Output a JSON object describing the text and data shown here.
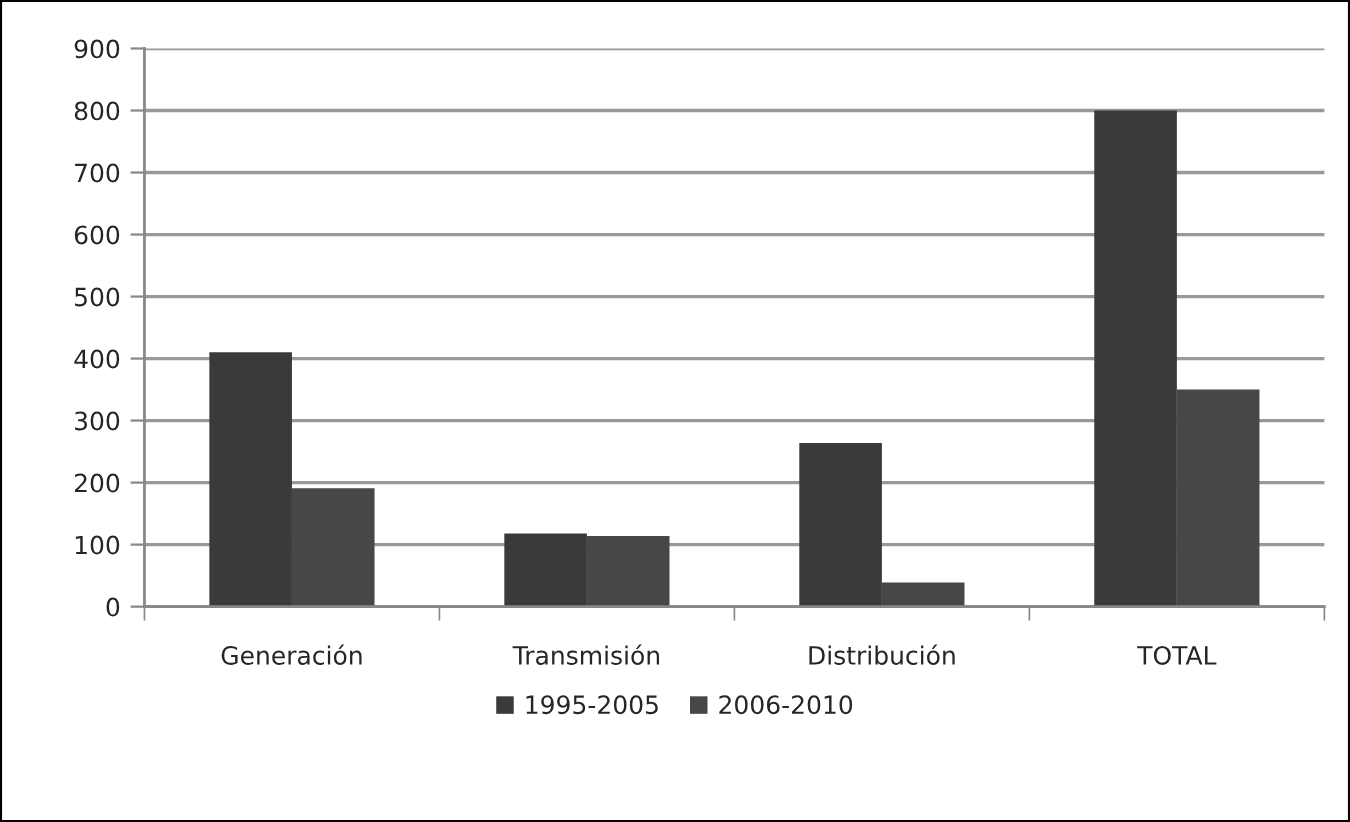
{
  "chart_data": {
    "type": "bar",
    "categories": [
      "Generación",
      "Transmisión",
      "Distribución",
      "TOTAL"
    ],
    "series": [
      {
        "name": "1995-2005",
        "color": "#3a3a3a",
        "values": [
          410,
          118,
          264,
          800
        ]
      },
      {
        "name": "2006-2010",
        "color": "#474747",
        "values": [
          191,
          114,
          39,
          350
        ]
      }
    ],
    "ylim": [
      0,
      900
    ],
    "yticks": [
      0,
      100,
      200,
      300,
      400,
      500,
      600,
      700,
      800,
      900
    ],
    "grid": "y",
    "legend": "bottom"
  }
}
